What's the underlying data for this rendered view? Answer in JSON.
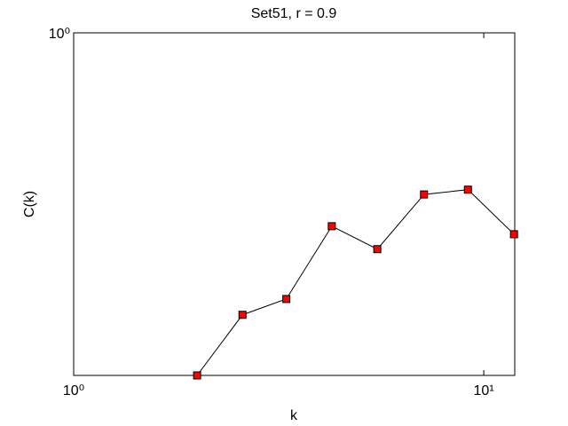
{
  "chart_data": {
    "type": "line",
    "title": "Set51, r = 0.9",
    "x_label": "k",
    "y_label": "C(k)",
    "x": [
      2,
      2.58,
      3.3,
      4.26,
      5.5,
      7.15,
      9.15,
      11.85
    ],
    "series": [
      {
        "color": "#ff0000",
        "values": [
          0.087,
          0.134,
          0.15,
          0.252,
          0.214,
          0.316,
          0.327,
          0.238
        ]
      }
    ],
    "x_log": true,
    "y_log": true,
    "xlim": [
      1,
      11.9
    ],
    "ylim": [
      0.087,
      1
    ],
    "xticks": [
      {
        "value": 1,
        "label": "10⁰"
      },
      {
        "value": 10,
        "label": "10¹"
      }
    ],
    "yticks": [
      {
        "value": 1,
        "label": "10⁰"
      }
    ]
  }
}
